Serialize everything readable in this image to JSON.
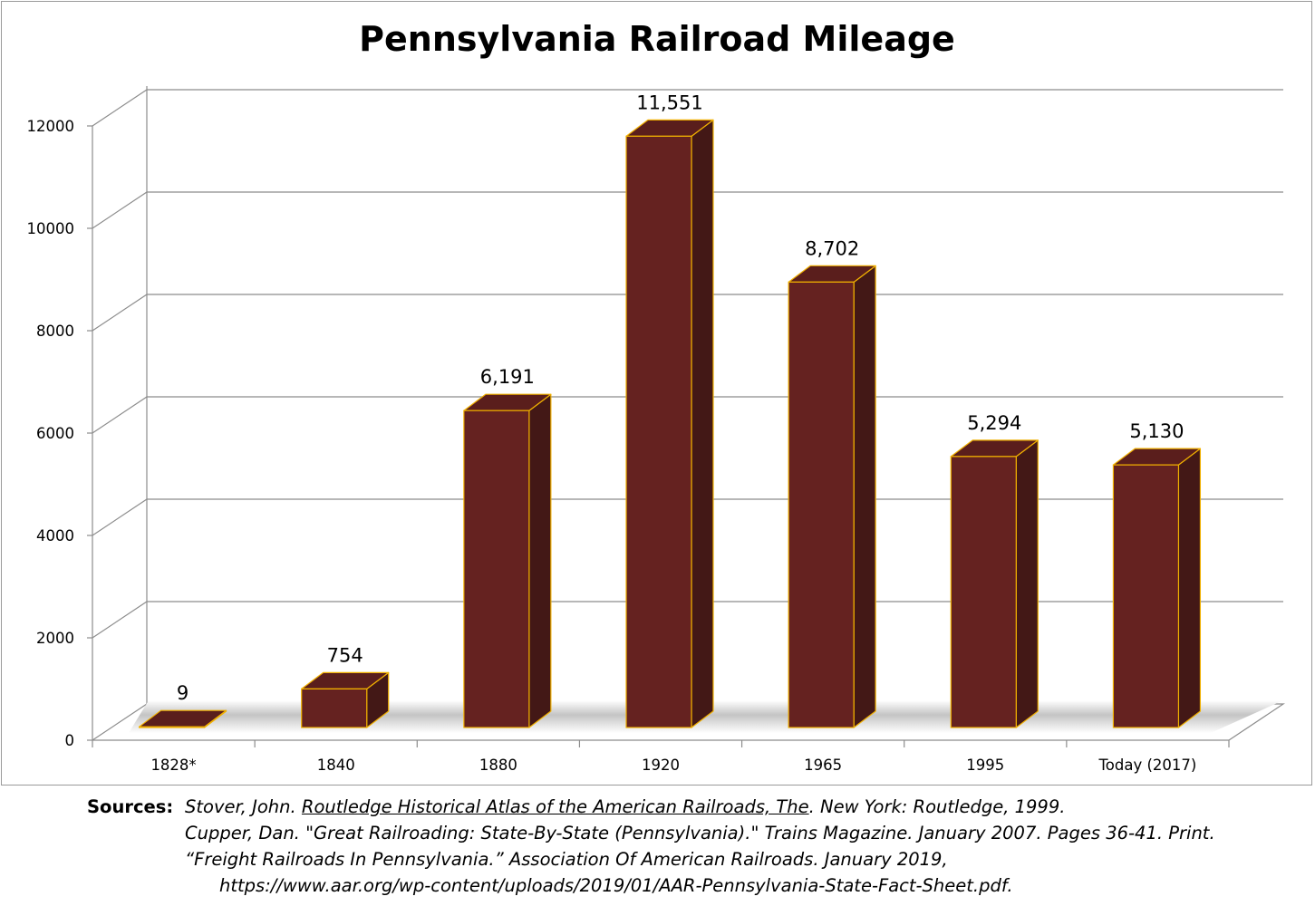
{
  "chart_data": {
    "type": "bar",
    "title": "Pennsylvania Railroad Mileage",
    "categories": [
      "1828*",
      "1840",
      "1880",
      "1920",
      "1965",
      "1995",
      "Today  (2017)"
    ],
    "values": [
      9,
      754,
      6191,
      11551,
      8702,
      5294,
      5130
    ],
    "data_labels": [
      "9",
      "754",
      "6,191",
      "11,551",
      "8,702",
      "5,294",
      "5,130"
    ],
    "xlabel": "",
    "ylabel": "",
    "ylim": [
      0,
      12000
    ],
    "yticks": [
      "0",
      "2000",
      "4000",
      "6000",
      "8000",
      "10000",
      "12000"
    ],
    "style": "3d-column",
    "grid": true,
    "legend": "none",
    "colors": {
      "bar_front": "#652220",
      "bar_side": "#431816",
      "bar_top": "#5a1e1c",
      "bar_outline": "#f0b000",
      "gridline": "#8c8c8c"
    }
  },
  "sources": {
    "label": "Sources:",
    "line1_pre": "Stover, John. ",
    "line1_title": "Routledge Historical Atlas of the American Railroads, The",
    "line1_post": ". New York: Routledge, 1999.",
    "line2": "Cupper, Dan. \"Great Railroading: State-By-State (Pennsylvania).\" Trains Magazine. January 2007. Pages 36-41. Print.",
    "line3": "“Freight Railroads In Pennsylvania.” Association Of American Railroads. January 2019,",
    "line4": "https://www.aar.org/wp-content/uploads/2019/01/AAR-Pennsylvania-State-Fact-Sheet.pdf."
  }
}
